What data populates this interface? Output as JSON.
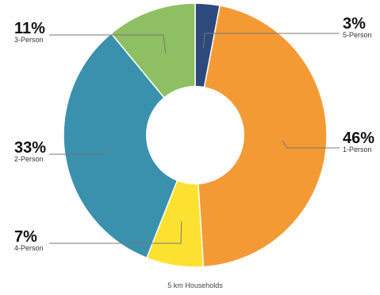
{
  "chart_data": {
    "type": "pie",
    "donut": true,
    "title": "",
    "caption": "5 km Households",
    "categories": [
      "5-Person",
      "1-Person",
      "4-Person",
      "2-Person",
      "3-Person"
    ],
    "values": [
      3,
      46,
      7,
      33,
      11
    ],
    "labels": [
      "3%",
      "46%",
      "7%",
      "33%",
      "11%"
    ],
    "colors": [
      "#2e4a7d",
      "#f39a35",
      "#fde130",
      "#3a91ad",
      "#8ebf63"
    ],
    "legend": "none",
    "start_angle": "12 o'clock",
    "direction": "clockwise"
  }
}
